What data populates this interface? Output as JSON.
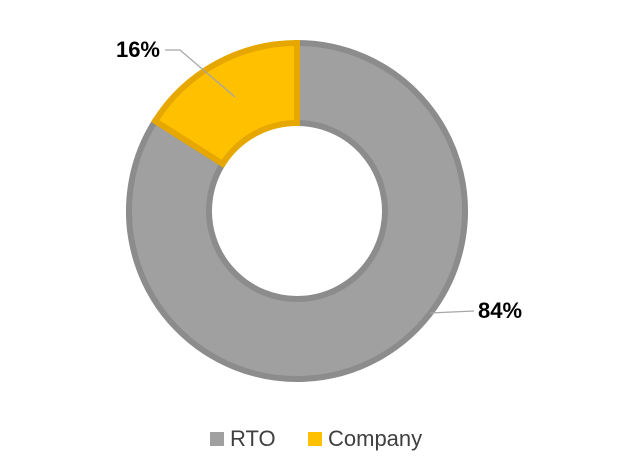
{
  "chart_data": {
    "type": "donut",
    "categories": [
      "RTO",
      "Company"
    ],
    "values": [
      84,
      16
    ],
    "value_labels": [
      "84%",
      "16%"
    ],
    "colors": [
      "#a0a0a0",
      "#ffc000"
    ],
    "edge_colors": [
      "#8c8c8c",
      "#e6a800"
    ]
  }
}
